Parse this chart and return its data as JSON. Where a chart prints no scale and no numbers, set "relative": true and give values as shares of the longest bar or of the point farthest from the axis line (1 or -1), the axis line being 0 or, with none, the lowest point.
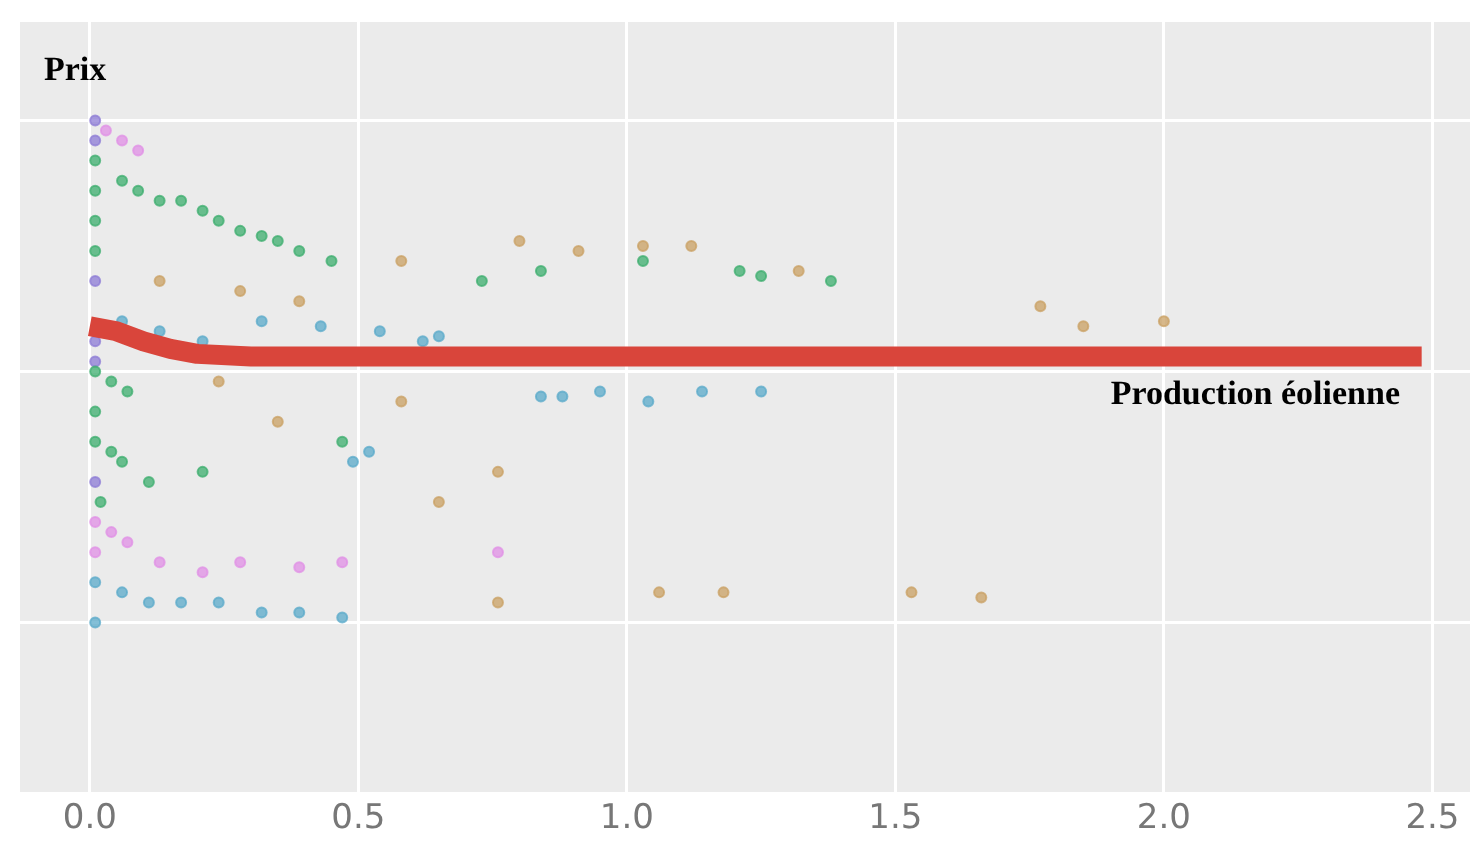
{
  "chart_data": {
    "type": "scatter",
    "ylabel": "Prix",
    "xlabel": "Production éolienne",
    "relative": true,
    "grid": true,
    "legend": false,
    "xlim": [
      -0.13,
      2.57
    ],
    "xticks": [
      {
        "value": 0,
        "label": "0.0"
      },
      0.5,
      {
        "value": 1,
        "label": "1.0"
      },
      1.5,
      {
        "value": 2,
        "label": "2.0"
      },
      2.5
    ],
    "series": [
      {
        "marker": "circle",
        "color": "#3cae6e",
        "x": [
          0.01,
          0.01,
          0.01,
          0.01,
          0.06,
          0.09,
          0.13,
          0.17,
          0.21,
          0.24,
          0.28,
          0.32,
          0.35,
          0.39,
          0.45,
          0.01,
          0.04,
          0.07,
          0.01,
          0.01,
          0.04,
          0.06,
          0.11,
          0.02,
          0.21,
          0.47,
          0.73,
          0.84,
          1.03,
          1.21,
          1.25,
          1.38
        ],
        "values": [
          0.92,
          0.86,
          0.8,
          0.74,
          0.88,
          0.86,
          0.84,
          0.84,
          0.82,
          0.8,
          0.78,
          0.77,
          0.76,
          0.74,
          0.72,
          0.5,
          0.48,
          0.46,
          0.42,
          0.36,
          0.34,
          0.32,
          0.28,
          0.24,
          0.3,
          0.36,
          0.68,
          0.7,
          0.72,
          0.7,
          0.69,
          0.68
        ]
      },
      {
        "marker": "circle",
        "color": "#5aa9c9",
        "x": [
          0.01,
          0.01,
          0.06,
          0.11,
          0.17,
          0.24,
          0.32,
          0.39,
          0.47,
          0.06,
          0.13,
          0.21,
          0.32,
          0.43,
          0.54,
          0.62,
          0.65,
          0.84,
          0.88,
          0.95,
          1.04,
          1.14,
          1.25,
          0.49,
          0.52
        ],
        "values": [
          0.0,
          0.08,
          0.06,
          0.04,
          0.04,
          0.04,
          0.02,
          0.02,
          0.01,
          0.6,
          0.58,
          0.56,
          0.6,
          0.59,
          0.58,
          0.56,
          0.57,
          0.45,
          0.45,
          0.46,
          0.44,
          0.46,
          0.46,
          0.32,
          0.34
        ]
      },
      {
        "marker": "circle",
        "color": "#c9a063",
        "x": [
          0.13,
          0.28,
          0.39,
          0.58,
          0.8,
          0.91,
          1.03,
          1.12,
          1.32,
          0.76,
          0.58,
          0.35,
          0.24,
          0.65,
          1.77,
          1.85,
          2.0,
          1.06,
          1.18,
          1.53,
          1.66,
          0.76
        ],
        "values": [
          0.68,
          0.66,
          0.64,
          0.72,
          0.76,
          0.74,
          0.75,
          0.75,
          0.7,
          0.3,
          0.44,
          0.4,
          0.48,
          0.24,
          0.63,
          0.59,
          0.6,
          0.06,
          0.06,
          0.06,
          0.05,
          0.04
        ]
      },
      {
        "marker": "circle",
        "color": "#e08fe6",
        "x": [
          0.03,
          0.06,
          0.09,
          0.01,
          0.04,
          0.07,
          0.01,
          0.13,
          0.21,
          0.28,
          0.39,
          0.47,
          0.76
        ],
        "values": [
          0.98,
          0.96,
          0.94,
          0.2,
          0.18,
          0.16,
          0.14,
          0.12,
          0.1,
          0.12,
          0.11,
          0.12,
          0.14
        ]
      },
      {
        "marker": "circle",
        "color": "#8c7bd6",
        "x": [
          0.01,
          0.01,
          0.01,
          0.01,
          0.01,
          0.01
        ],
        "values": [
          1.0,
          0.96,
          0.68,
          0.56,
          0.52,
          0.28
        ]
      },
      {
        "type": "line",
        "marker": "none",
        "color": "#d9453b",
        "x": [
          0,
          0.05,
          0.1,
          0.15,
          0.2,
          0.3,
          0.5,
          1.0,
          1.5,
          2.0,
          2.48
        ],
        "values": [
          0.59,
          0.58,
          0.56,
          0.545,
          0.535,
          0.53,
          0.53,
          0.53,
          0.53,
          0.53,
          0.53
        ]
      }
    ]
  }
}
